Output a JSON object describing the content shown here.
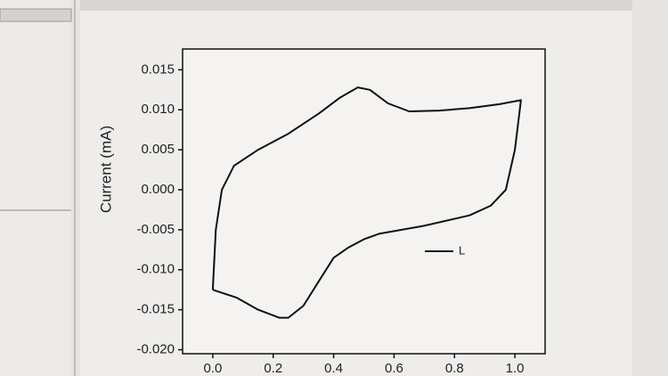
{
  "chart_data": {
    "type": "line",
    "y_label": "Current (mA)",
    "x": [
      0.0,
      0.01,
      0.03,
      0.07,
      0.15,
      0.25,
      0.35,
      0.42,
      0.48,
      0.52,
      0.58,
      0.65,
      0.75,
      0.85,
      0.95,
      1.02,
      1.0,
      0.97,
      0.92,
      0.85,
      0.7,
      0.55,
      0.5,
      0.45,
      0.4,
      0.35,
      0.3,
      0.25,
      0.22,
      0.15,
      0.08,
      0.0
    ],
    "series": [
      {
        "name": "L",
        "color": "#111111",
        "values": [
          -0.0125,
          -0.005,
          0.0,
          0.003,
          0.005,
          0.007,
          0.0095,
          0.0115,
          0.0128,
          0.0125,
          0.0108,
          0.0098,
          0.0099,
          0.0102,
          0.0107,
          0.0112,
          0.005,
          0.0,
          -0.002,
          -0.0032,
          -0.0045,
          -0.0055,
          -0.0062,
          -0.0072,
          -0.0085,
          -0.0115,
          -0.0145,
          -0.016,
          -0.016,
          -0.015,
          -0.0135,
          -0.0125
        ]
      }
    ],
    "xlim": [
      -0.1,
      1.1
    ],
    "ylim": [
      -0.0205,
      0.0176
    ],
    "xticks": [
      {
        "value": 0,
        "label": "0.0"
      },
      0.2,
      0.4,
      0.6,
      0.8,
      {
        "value": 1,
        "label": "1.0"
      }
    ],
    "yticks": [
      {
        "value": -0.02,
        "label": "-0.020"
      },
      -0.015,
      {
        "value": -0.01,
        "label": "-0.010"
      },
      -0.005,
      {
        "value": 0,
        "label": "0.000"
      },
      0.005,
      {
        "value": 0.01,
        "label": "0.010"
      },
      0.015
    ],
    "legend": "center right"
  }
}
